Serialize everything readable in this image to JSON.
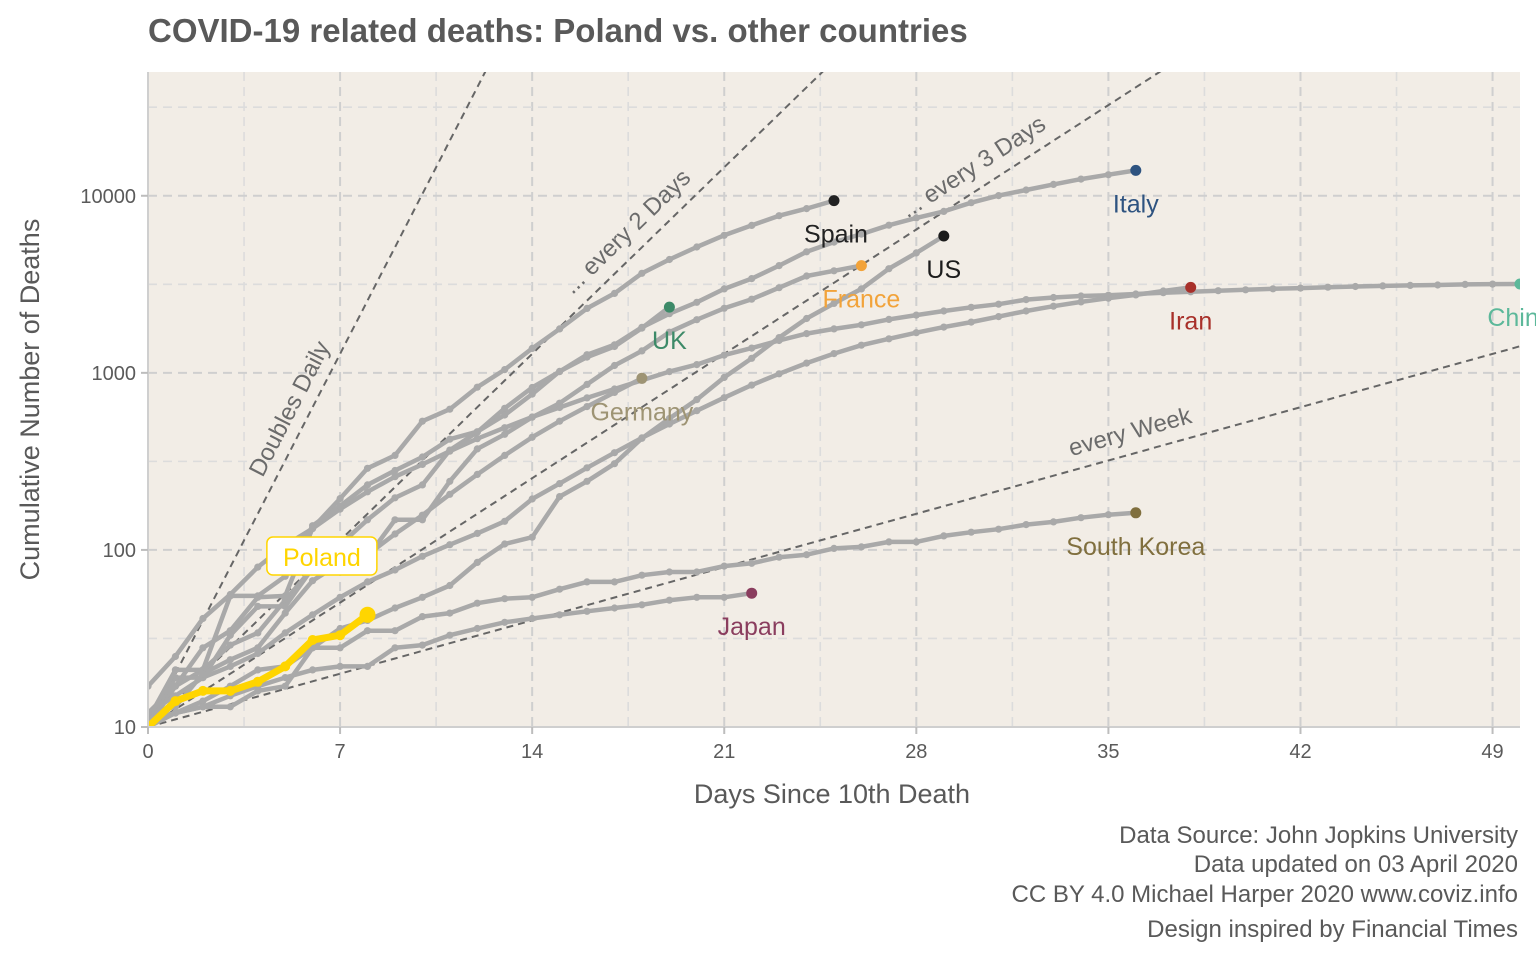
{
  "chart_data": {
    "type": "line",
    "title": "COVID-19 related deaths: Poland vs. other countries",
    "xlabel": "Days Since 10th Death",
    "ylabel": "Cumulative Number of Deaths",
    "xlim": [
      0,
      50
    ],
    "ylim": [
      10,
      50000
    ],
    "y_scale": "log",
    "x_ticks": [
      0,
      7,
      14,
      21,
      28,
      35,
      42,
      49
    ],
    "y_ticks": [
      10,
      100,
      1000,
      10000
    ],
    "grid": true,
    "background": "#f2ede6",
    "highlight": {
      "name": "Poland",
      "color": "#ffd500",
      "x": [
        0,
        1,
        2,
        3,
        4,
        5,
        6,
        7,
        8
      ],
      "y": [
        10,
        14,
        16,
        16,
        18,
        22,
        31,
        33,
        43
      ]
    },
    "series": [
      {
        "name": "China",
        "color": "#5cb89a",
        "x": [
          0,
          1,
          2,
          3,
          4,
          5,
          6,
          7,
          8,
          9,
          10,
          11,
          12,
          13,
          14,
          15,
          16,
          17,
          18,
          19,
          20,
          21,
          22,
          23,
          24,
          25,
          26,
          27,
          28,
          29,
          30,
          31,
          32,
          33,
          34,
          35,
          36,
          37,
          38,
          39,
          40,
          41,
          42,
          43,
          44,
          45,
          46,
          47,
          48,
          49,
          50
        ],
        "y": [
          17,
          25,
          41,
          56,
          80,
          106,
          132,
          170,
          213,
          259,
          304,
          361,
          425,
          490,
          563,
          637,
          722,
          811,
          908,
          1016,
          1113,
          1259,
          1380,
          1523,
          1665,
          1770,
          1868,
          2004,
          2118,
          2236,
          2345,
          2442,
          2592,
          2663,
          2715,
          2744,
          2788,
          2835,
          2870,
          2912,
          2943,
          2981,
          3012,
          3045,
          3073,
          3099,
          3119,
          3136,
          3158,
          3169,
          3176
        ]
      },
      {
        "name": "Italy",
        "color": "#2e5380",
        "x": [
          0,
          1,
          2,
          3,
          4,
          5,
          6,
          7,
          8,
          9,
          10,
          11,
          12,
          13,
          14,
          15,
          16,
          17,
          18,
          19,
          20,
          21,
          22,
          23,
          24,
          25,
          26,
          27,
          28,
          29,
          30,
          31,
          32,
          33,
          34,
          35,
          36
        ],
        "y": [
          12,
          17,
          21,
          29,
          34,
          52,
          79,
          107,
          148,
          197,
          233,
          366,
          463,
          631,
          827,
          1016,
          1266,
          1441,
          1809,
          2158,
          2503,
          2978,
          3405,
          4032,
          4825,
          5476,
          6077,
          6820,
          7503,
          8165,
          9134,
          10023,
          10779,
          11591,
          12428,
          13155,
          13915
        ]
      },
      {
        "name": "Spain",
        "color": "#222222",
        "x": [
          0,
          1,
          2,
          3,
          4,
          5,
          6,
          7,
          8,
          9,
          10,
          11,
          12,
          13,
          14,
          15,
          16,
          17,
          18,
          19,
          20,
          21,
          22,
          23,
          24,
          25
        ],
        "y": [
          10,
          17,
          28,
          35,
          54,
          55,
          133,
          195,
          289,
          342,
          533,
          623,
          830,
          1043,
          1375,
          1772,
          2311,
          2808,
          3647,
          4365,
          5138,
          5982,
          6803,
          7716,
          8464,
          9387
        ]
      },
      {
        "name": "US",
        "color": "#1c1c1c",
        "x": [
          0,
          1,
          2,
          3,
          4,
          5,
          6,
          7,
          8,
          9,
          10,
          11,
          12,
          13,
          14,
          15,
          16,
          17,
          18,
          19,
          20,
          21,
          22,
          23,
          24,
          25,
          26,
          27,
          28,
          29
        ],
        "y": [
          11,
          12,
          14,
          17,
          21,
          22,
          28,
          36,
          40,
          47,
          54,
          63,
          85,
          108,
          118,
          200,
          244,
          307,
          427,
          552,
          706,
          942,
          1209,
          1581,
          2026,
          2467,
          2978,
          3873,
          4757,
          5926
        ]
      },
      {
        "name": "France",
        "color": "#f2a33a",
        "x": [
          0,
          1,
          2,
          3,
          4,
          5,
          6,
          7,
          8,
          9,
          10,
          11,
          12,
          13,
          14,
          15,
          16,
          17,
          18,
          19,
          20,
          21,
          22,
          23,
          24,
          25,
          26
        ],
        "y": [
          11,
          19,
          19,
          33,
          48,
          48,
          79,
          91,
          91,
          148,
          148,
          244,
          372,
          450,
          562,
          674,
          860,
          1100,
          1331,
          1696,
          1995,
          2314,
          2606,
          3024,
          3523,
          3769,
          4032
        ]
      },
      {
        "name": "Iran",
        "color": "#a8302a",
        "x": [
          0,
          1,
          2,
          3,
          4,
          5,
          6,
          7,
          8,
          9,
          10,
          11,
          12,
          13,
          14,
          15,
          16,
          17,
          18,
          19,
          20,
          21,
          22,
          23,
          24,
          25,
          26,
          27,
          28,
          29,
          30,
          31,
          32,
          33,
          34,
          35,
          36,
          37,
          38
        ],
        "y": [
          12,
          15,
          19,
          22,
          26,
          34,
          43,
          54,
          66,
          77,
          92,
          107,
          124,
          145,
          194,
          237,
          291,
          354,
          429,
          514,
          611,
          724,
          853,
          988,
          1135,
          1284,
          1433,
          1556,
          1685,
          1812,
          1934,
          2077,
          2234,
          2378,
          2517,
          2640,
          2757,
          2898,
          3036
        ]
      },
      {
        "name": "UK",
        "color": "#3d8a68",
        "x": [
          0,
          1,
          2,
          3,
          4,
          5,
          6,
          7,
          8,
          9,
          10,
          11,
          12,
          13,
          14,
          15,
          16,
          17,
          18,
          19
        ],
        "y": [
          11,
          21,
          21,
          55,
          55,
          71,
          137,
          177,
          233,
          281,
          335,
          422,
          465,
          578,
          759,
          1019,
          1228,
          1408,
          1789,
          2352
        ]
      },
      {
        "name": "Germany",
        "color": "#9e9474",
        "x": [
          0,
          1,
          2,
          3,
          4,
          5,
          6,
          7,
          8,
          9,
          10,
          11,
          12,
          13,
          14,
          15,
          16,
          17,
          18
        ],
        "y": [
          12,
          13,
          20,
          24,
          28,
          44,
          67,
          84,
          94,
          123,
          157,
          206,
          267,
          342,
          433,
          533,
          645,
          775,
          931
        ]
      },
      {
        "name": "South Korea",
        "color": "#806f3e",
        "x": [
          0,
          1,
          2,
          3,
          4,
          5,
          6,
          7,
          8,
          9,
          10,
          11,
          12,
          13,
          14,
          15,
          16,
          17,
          18,
          19,
          20,
          21,
          22,
          23,
          24,
          25,
          26,
          27,
          28,
          29,
          30,
          31,
          32,
          33,
          34,
          35,
          36
        ],
        "y": [
          11,
          12,
          13,
          13,
          16,
          17,
          28,
          28,
          35,
          35,
          42,
          44,
          50,
          53,
          54,
          60,
          66,
          66,
          72,
          75,
          75,
          81,
          84,
          91,
          94,
          102,
          104,
          111,
          111,
          120,
          126,
          131,
          139,
          144,
          152,
          158,
          162
        ]
      },
      {
        "name": "Japan",
        "color": "#8a3d5e",
        "x": [
          0,
          1,
          2,
          3,
          4,
          5,
          6,
          7,
          8,
          9,
          10,
          11,
          12,
          13,
          14,
          15,
          16,
          17,
          18,
          19,
          20,
          21,
          22
        ],
        "y": [
          10,
          12,
          13,
          15,
          17,
          19,
          21,
          22,
          22,
          28,
          29,
          33,
          36,
          39,
          41,
          43,
          45,
          47,
          49,
          52,
          54,
          54,
          57
        ]
      }
    ],
    "reference_lines": [
      {
        "label": "Doubles Daily",
        "doubling_days": 1
      },
      {
        "label": "... every 2 Days",
        "doubling_days": 2
      },
      {
        "label": "... every 3 Days",
        "doubling_days": 3
      },
      {
        "label": "every  Week",
        "doubling_days": 7
      }
    ],
    "caption": [
      "Data Source: John Jopkins University",
      "Data updated on 03 April 2020",
      "CC BY 4.0 Michael Harper 2020 www.coviz.info",
      "Design inspired by Financial Times"
    ]
  }
}
